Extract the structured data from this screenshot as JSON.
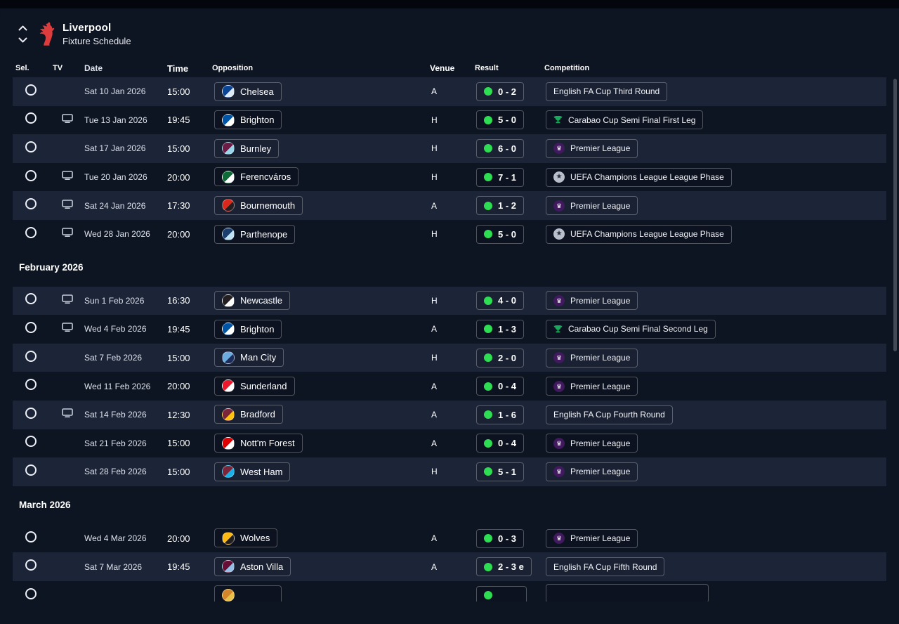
{
  "header": {
    "title": "Liverpool",
    "subtitle": "Fixture Schedule"
  },
  "columns": [
    "Sel.",
    "TV",
    "Date",
    "Time",
    "Opposition",
    "Venue",
    "Result",
    "Competition"
  ],
  "colors": {
    "win": "#2ede52",
    "crest_red": "#de3c3c"
  },
  "sections": [
    {
      "month": "",
      "fixtures": [
        {
          "tv": false,
          "date": "Sat 10 Jan 2026",
          "time": "15:00",
          "opponent": "Chelsea",
          "badge": [
            "#0a4595",
            "#dce9f7"
          ],
          "venue": "A",
          "result": "0 - 2",
          "competition": "English FA Cup Third Round",
          "comp_icon": "none"
        },
        {
          "tv": true,
          "date": "Tue 13 Jan 2026",
          "time": "19:45",
          "opponent": "Brighton",
          "badge": [
            "#0054a6",
            "#ffffff"
          ],
          "venue": "H",
          "result": "5 - 0",
          "competition": "Carabao Cup Semi Final First Leg",
          "comp_icon": "carabao"
        },
        {
          "tv": false,
          "date": "Sat 17 Jan 2026",
          "time": "15:00",
          "opponent": "Burnley",
          "badge": [
            "#6c1d45",
            "#99d6ea"
          ],
          "venue": "H",
          "result": "6 - 0",
          "competition": "Premier League",
          "comp_icon": "premier-league"
        },
        {
          "tv": true,
          "date": "Tue 20 Jan 2026",
          "time": "20:00",
          "opponent": "Ferencváros",
          "badge": [
            "#0e6b37",
            "#ffffff"
          ],
          "venue": "H",
          "result": "7 - 1",
          "competition": "UEFA Champions League League Phase",
          "comp_icon": "ucl"
        },
        {
          "tv": true,
          "date": "Sat 24 Jan 2026",
          "time": "17:30",
          "opponent": "Bournemouth",
          "badge": [
            "#da291c",
            "#231f20"
          ],
          "venue": "A",
          "result": "1 - 2",
          "competition": "Premier League",
          "comp_icon": "premier-league"
        },
        {
          "tv": true,
          "date": "Wed 28 Jan 2026",
          "time": "20:00",
          "opponent": "Parthenope",
          "badge": [
            "#1a3e6e",
            "#bfe3f5"
          ],
          "venue": "H",
          "result": "5 - 0",
          "competition": "UEFA Champions League League Phase",
          "comp_icon": "ucl"
        }
      ]
    },
    {
      "month": "February 2026",
      "fixtures": [
        {
          "tv": true,
          "date": "Sun 1 Feb 2026",
          "time": "16:30",
          "opponent": "Newcastle",
          "badge": [
            "#241f20",
            "#ffffff"
          ],
          "venue": "H",
          "result": "4 - 0",
          "competition": "Premier League",
          "comp_icon": "premier-league"
        },
        {
          "tv": true,
          "date": "Wed 4 Feb 2026",
          "time": "19:45",
          "opponent": "Brighton",
          "badge": [
            "#0054a6",
            "#ffffff"
          ],
          "venue": "A",
          "result": "1 - 3",
          "competition": "Carabao Cup Semi Final Second Leg",
          "comp_icon": "carabao"
        },
        {
          "tv": false,
          "date": "Sat 7 Feb 2026",
          "time": "15:00",
          "opponent": "Man City",
          "badge": [
            "#6cabdd",
            "#1c2c5b"
          ],
          "venue": "H",
          "result": "2 - 0",
          "competition": "Premier League",
          "comp_icon": "premier-league"
        },
        {
          "tv": false,
          "date": "Wed 11 Feb 2026",
          "time": "20:00",
          "opponent": "Sunderland",
          "badge": [
            "#eb172b",
            "#ffffff"
          ],
          "venue": "A",
          "result": "0 - 4",
          "competition": "Premier League",
          "comp_icon": "premier-league"
        },
        {
          "tv": true,
          "date": "Sat 14 Feb 2026",
          "time": "12:30",
          "opponent": "Bradford",
          "badge": [
            "#7a263a",
            "#ffc20e"
          ],
          "venue": "A",
          "result": "1 - 6",
          "competition": "English FA Cup Fourth Round",
          "comp_icon": "none"
        },
        {
          "tv": false,
          "date": "Sat 21 Feb 2026",
          "time": "15:00",
          "opponent": "Nott'm Forest",
          "badge": [
            "#dd0000",
            "#ffffff"
          ],
          "venue": "A",
          "result": "0 - 4",
          "competition": "Premier League",
          "comp_icon": "premier-league"
        },
        {
          "tv": false,
          "date": "Sat 28 Feb 2026",
          "time": "15:00",
          "opponent": "West Ham",
          "badge": [
            "#7a263a",
            "#1bb1e7"
          ],
          "venue": "H",
          "result": "5 - 1",
          "competition": "Premier League",
          "comp_icon": "premier-league"
        }
      ]
    },
    {
      "month": "March 2026",
      "fixtures": [
        {
          "tv": false,
          "date": "Wed 4 Mar 2026",
          "time": "20:00",
          "opponent": "Wolves",
          "badge": [
            "#fdb913",
            "#231f20"
          ],
          "venue": "A",
          "result": "0 - 3",
          "competition": "Premier League",
          "comp_icon": "premier-league"
        },
        {
          "tv": false,
          "date": "Sat 7 Mar 2026",
          "time": "19:45",
          "opponent": "Aston Villa",
          "badge": [
            "#670e36",
            "#95bfe5"
          ],
          "venue": "A",
          "result": "2 - 3 e",
          "competition": "English FA Cup Fifth Round",
          "comp_icon": "none"
        },
        {
          "tv": false,
          "date": "",
          "time": "",
          "opponent": "",
          "badge": [
            "#d4862a",
            "#e8c14a"
          ],
          "venue": "",
          "result": "",
          "competition": "",
          "comp_icon": "none",
          "partial": true
        }
      ]
    }
  ]
}
